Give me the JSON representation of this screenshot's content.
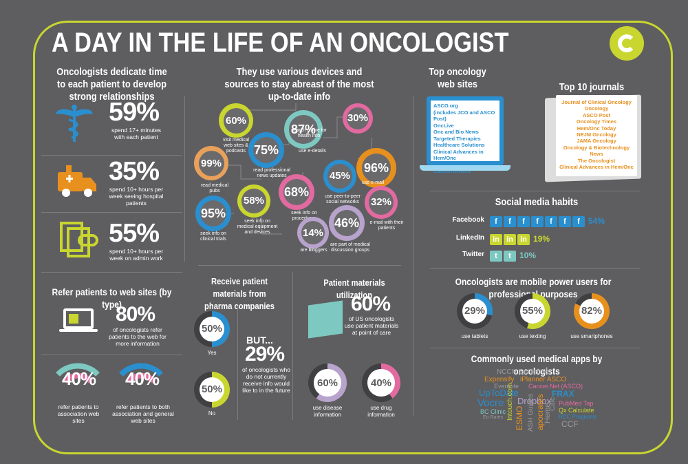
{
  "title": "A DAY IN THE LIFE OF AN ONCOLOGIST",
  "colors": {
    "background": "#5e5e60",
    "accent_green": "#c9d62f",
    "blue": "#2a8fcf",
    "orange": "#e8901e",
    "purple": "#b8a3cc",
    "pink": "#e26aa0"
  },
  "time": {
    "heading": "Oncologists dedicate time to each patient to develop strong relationships",
    "items": [
      {
        "icon": "caduceus-icon",
        "value": "59%",
        "text": "spend 17+ minutes with each patient"
      },
      {
        "icon": "ambulance-icon",
        "value": "35%",
        "text": "spend 10+ hours per week seeing hospital patients"
      },
      {
        "icon": "paperclip-documents-icon",
        "value": "55%",
        "text": "spend 10+ hours per week on admin work"
      }
    ]
  },
  "devices": {
    "heading": "They use various devices and sources to stay abreast of the most up-to-date info",
    "bubbles": [
      {
        "value": "60%",
        "text": "visit medical web sites & podcasts",
        "color": "#c9d62f"
      },
      {
        "value": "87%",
        "text": "read professional news updates",
        "color": "#7ec8c2"
      },
      {
        "value": "30%",
        "text": "use e-details",
        "color": "#e26aa0"
      },
      {
        "value": "99%",
        "text": "read medical pubs",
        "color": "#e8a05a"
      },
      {
        "value": "75%",
        "text": "search online for health info",
        "color": "#2a8fcf"
      },
      {
        "value": "96%",
        "text": "use e-mail",
        "color": "#e8901e"
      },
      {
        "value": "45%",
        "text": "use peer-to-peer social networks",
        "color": "#2a8fcf"
      },
      {
        "value": "68%",
        "text": "seek info on procedures",
        "color": "#e26aa0"
      },
      {
        "value": "58%",
        "text": "seek info on medical equipment and devices",
        "color": "#c9d62f"
      },
      {
        "value": "32%",
        "text": "e-mail with their patients",
        "color": "#e26aa0"
      },
      {
        "value": "95%",
        "text": "seek info on clinical trials",
        "color": "#2a8fcf"
      },
      {
        "value": "46%",
        "text": "are part of medical discussion groups",
        "color": "#b8a3cc"
      },
      {
        "value": "14%",
        "text": "are bloggers",
        "color": "#b8a3cc"
      }
    ]
  },
  "websites": {
    "heading": "Top oncology web sites",
    "items": [
      "ASCO.org",
      "(includes JCO and ASCO Post)",
      "OncLive",
      "Onc and Bio News",
      "Targeted Therapies",
      "Healthcare Solutions",
      "Clinical Advances in Hem/Onc",
      "Medscape",
      "Cancernetwork"
    ]
  },
  "journals": {
    "heading": "Top 10 journals",
    "items": [
      "Journal of Clinical Oncology",
      "Oncology",
      "ASCO Post",
      "Oncology Times",
      "Hem/Onc Today",
      "NEJM Oncology",
      "JAMA Oncology",
      "Oncology & Biotechnology News",
      "The Oncologist",
      "Clinical Advances in Hem/Onc"
    ]
  },
  "social": {
    "heading": "Social media habits",
    "rows": [
      {
        "name": "Facebook",
        "value": "54%",
        "glyph": "f",
        "count": 7,
        "color": "#2a8fcf"
      },
      {
        "name": "LinkedIn",
        "value": "19%",
        "glyph": "in",
        "count": 3,
        "color": "#c9d62f"
      },
      {
        "name": "Twitter",
        "value": "10%",
        "glyph": "t",
        "count": 2,
        "color": "#7ec8c2"
      }
    ]
  },
  "mobile": {
    "heading": "Oncologists are mobile power users for professional purposes",
    "items": [
      {
        "value": "29%",
        "text": "use tablets",
        "pct": 29,
        "color": "#2a8fcf"
      },
      {
        "value": "55%",
        "text": "use texting",
        "pct": 55,
        "color": "#c9d62f"
      },
      {
        "value": "82%",
        "text": "use smartphones",
        "pct": 82,
        "color": "#e8901e"
      }
    ]
  },
  "apps": {
    "heading": "Commonly used medical apps by oncologists",
    "words": [
      "NCCN Guidelines",
      "Expensify",
      "iPlanner ASCO",
      "Evernote",
      "Cancer.Net (ASCO)",
      "UpToDate",
      "FRAX",
      "Intouch.com",
      "Vocre",
      "Dropbox",
      "Calc",
      "PubMed Tap",
      "Qx Calculate",
      "BC Clinic",
      "Heme",
      "RCC Prognosis",
      "Eo Rares",
      "ASH Guides",
      "apocrates",
      "ESMO",
      "CCF"
    ]
  },
  "refer": {
    "heading": "Refer patients to web sites (by type)",
    "main_value": "80%",
    "main_text": "of oncologists refer patients to the web for more information",
    "items": [
      {
        "value": "40%",
        "text": "refer patients to association web sites"
      },
      {
        "value": "40%",
        "text": "refer patients to both association and general web sites"
      }
    ]
  },
  "pharma": {
    "heading": "Receive patient materials from pharma companies",
    "items": [
      {
        "value": "50%",
        "text": "Yes",
        "pct": 50,
        "color": "#2a8fcf"
      },
      {
        "value": "50%",
        "text": "No",
        "pct": 50,
        "color": "#c9d62f"
      }
    ],
    "but_label": "BUT...",
    "but_value": "29%",
    "but_text": "of oncologists who do not currently receive info would like to in the future"
  },
  "utilization": {
    "heading": "Patient materials utilization",
    "value": "60%",
    "text": "of US oncologists use patient materials at point of care",
    "items": [
      {
        "value": "60%",
        "text": "use disease information",
        "pct": 60,
        "color": "#b8a3cc"
      },
      {
        "value": "40%",
        "text": "use drug information",
        "pct": 40,
        "color": "#e26aa0"
      }
    ]
  }
}
